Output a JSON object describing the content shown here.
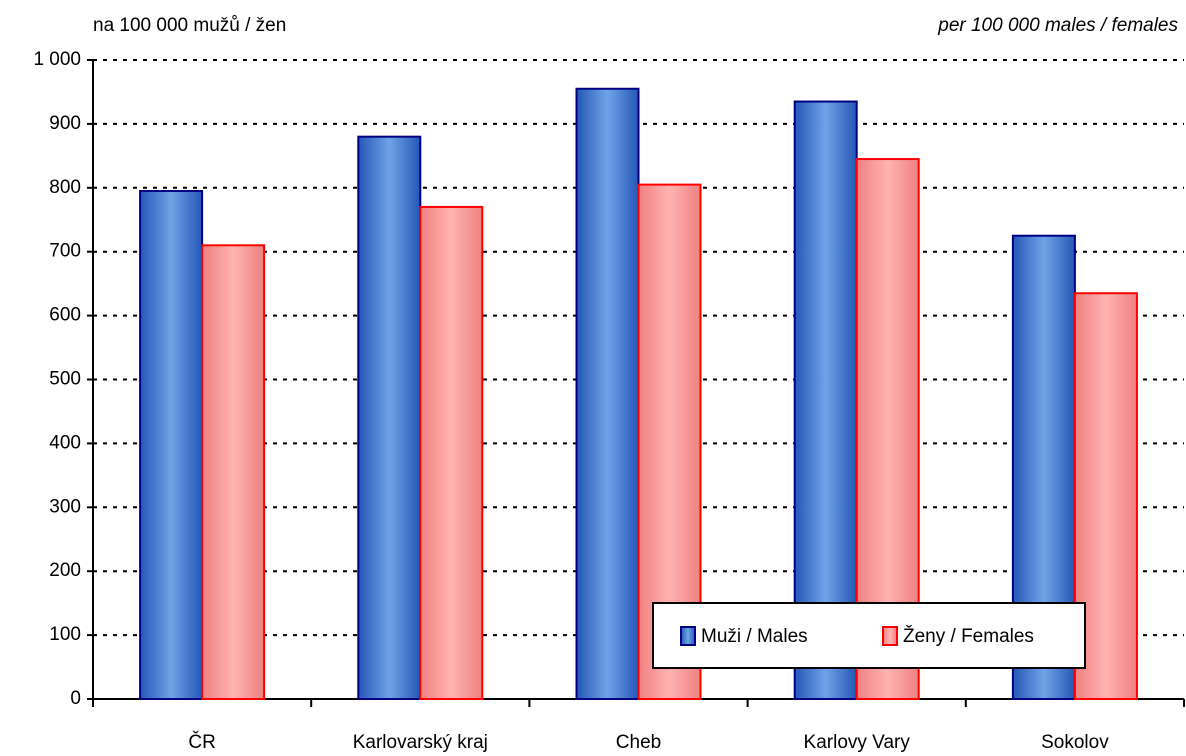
{
  "chart_data": {
    "type": "bar",
    "subtitle_left": "na 100 000 mužů / žen",
    "subtitle_right": "per 100 000 males / females",
    "categories": [
      "ČR",
      "Karlovarský kraj",
      "Cheb",
      "Karlovy Vary",
      "Sokolov"
    ],
    "series": [
      {
        "name": "Muži / Males",
        "color": "#6fa3e6",
        "values": [
          795,
          880,
          955,
          935,
          725
        ]
      },
      {
        "name": "Ženy / Females",
        "color": "#ffb3b3",
        "values": [
          710,
          770,
          805,
          845,
          635
        ]
      }
    ],
    "ylim": [
      0,
      1000
    ],
    "yticks": [
      0,
      100,
      200,
      300,
      400,
      500,
      600,
      700,
      800,
      900,
      {
        "value": 1000,
        "label": "1 000"
      }
    ],
    "grid": true,
    "legend": "lower right"
  }
}
